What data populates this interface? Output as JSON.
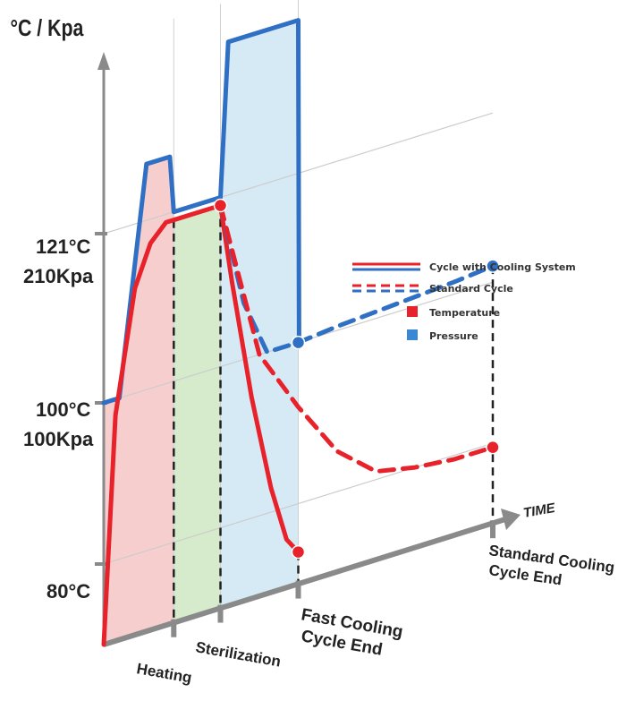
{
  "chart_data": {
    "type": "line",
    "title": "",
    "ylabel": "°C / Kpa",
    "xlabel": "TIME",
    "y_ticks": [
      {
        "line1": "121°C",
        "line2": "210Kpa"
      },
      {
        "line1": "100°C",
        "line2": "100Kpa"
      },
      {
        "line1": "80°C",
        "line2": ""
      }
    ],
    "phases": [
      "Heating",
      "Sterilization"
    ],
    "milestones": [
      {
        "line1": "Fast Cooling",
        "line2": "Cycle End"
      },
      {
        "line1": "Standard Cooling",
        "line2": "Cycle End"
      }
    ],
    "legend": {
      "line_styles": [
        "Cycle with Cooling System",
        "Standard Cycle"
      ],
      "variables": [
        "Temperature",
        "Pressure"
      ],
      "position": "right"
    },
    "colors": {
      "temperature": "#e8222a",
      "pressure": "#2f6fc4",
      "heating_fill": "#f6c6c6",
      "sterilization_fill": "#cfe8c2",
      "cooling_fill": "#cfe6f5",
      "axis": "#888888"
    },
    "x_range": [
      0,
      100
    ],
    "y_range": [
      70,
      145
    ],
    "x_phase_boundaries": [
      0,
      18,
      30,
      50,
      100
    ],
    "series": [
      {
        "name": "Pressure",
        "style": "Cycle with Cooling System",
        "x": [
          0,
          4,
          11,
          17,
          18,
          30,
          32,
          50,
          50.2
        ],
        "y": [
          100,
          100,
          128,
          128,
          121,
          121,
          140,
          140,
          100
        ]
      },
      {
        "name": "Temperature",
        "style": "Cycle with Cooling System",
        "x": [
          0,
          3,
          8,
          12,
          16,
          18,
          30,
          33,
          38,
          43,
          47,
          50
        ],
        "y": [
          70,
          98,
          113,
          118,
          120,
          120,
          120,
          110,
          95,
          83,
          76,
          74
        ]
      },
      {
        "name": "Pressure",
        "style": "Standard Cycle",
        "x": [
          30,
          36,
          42,
          47,
          50,
          60,
          75,
          90,
          100
        ],
        "y": [
          120,
          107,
          100,
          100,
          100,
          100.5,
          101,
          101.5,
          102
        ]
      },
      {
        "name": "Temperature",
        "style": "Standard Cycle",
        "x": [
          30,
          40,
          50,
          60,
          70,
          80,
          90,
          100
        ],
        "y": [
          120,
          100,
          92,
          85,
          81,
          80,
          79.5,
          79.5
        ]
      }
    ]
  }
}
